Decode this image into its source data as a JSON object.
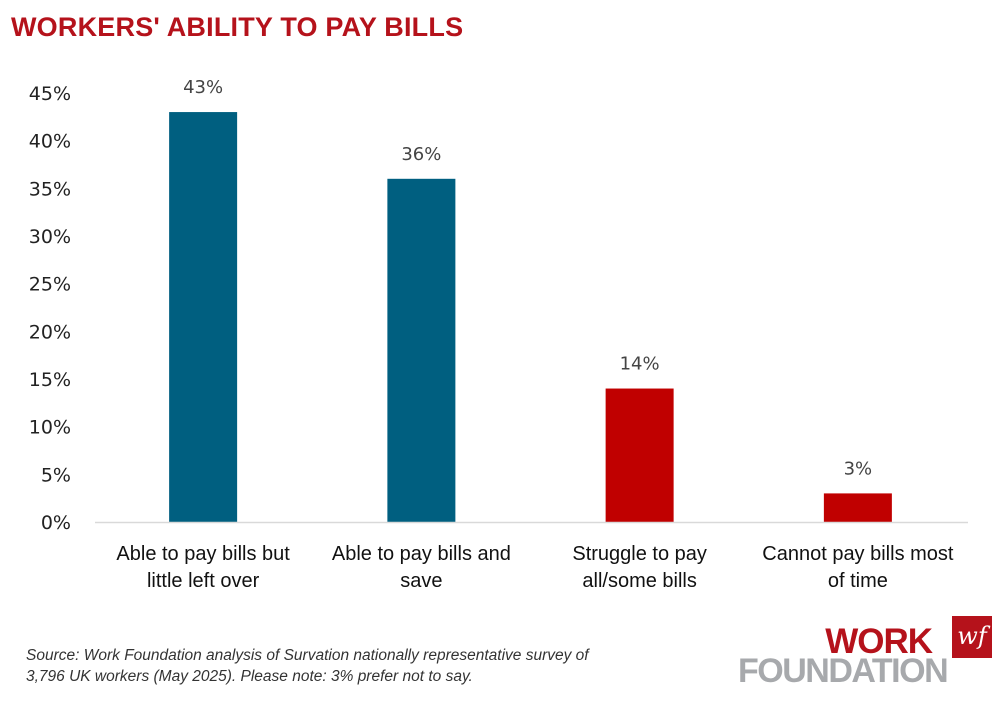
{
  "title": "WORKERS' ABILITY TO PAY BILLS",
  "chart_data": {
    "type": "bar",
    "title": "WORKERS' ABILITY TO PAY BILLS",
    "xlabel": "",
    "ylabel": "",
    "ylim": [
      0,
      45
    ],
    "yticks": [
      0,
      5,
      10,
      15,
      20,
      25,
      30,
      35,
      40,
      45
    ],
    "ytick_labels": [
      "0%",
      "5%",
      "10%",
      "15%",
      "20%",
      "25%",
      "30%",
      "35%",
      "40%",
      "45%"
    ],
    "grid": false,
    "legend": "none",
    "categories": [
      [
        "Able to pay bills but",
        "little left over"
      ],
      [
        "Able to pay bills and",
        "save"
      ],
      [
        "Struggle to pay",
        "all/some bills"
      ],
      [
        "Cannot pay bills most",
        "of time"
      ]
    ],
    "values": [
      43,
      36,
      14,
      3
    ],
    "data_labels": [
      "43%",
      "36%",
      "14%",
      "3%"
    ],
    "colors": [
      "#005f80",
      "#005f80",
      "#c00000",
      "#c00000"
    ]
  },
  "source": {
    "line1": "Source: Work Foundation analysis of Survation nationally representative survey of",
    "line2": "3,796 UK workers (May 2025). Please note: 3% prefer not to say."
  },
  "logo": {
    "work": "WORK",
    "foundation": "FOUNDATION",
    "mark": "wf"
  },
  "colors": {
    "title": "#b5121b",
    "axis": "#d9d9d9"
  }
}
